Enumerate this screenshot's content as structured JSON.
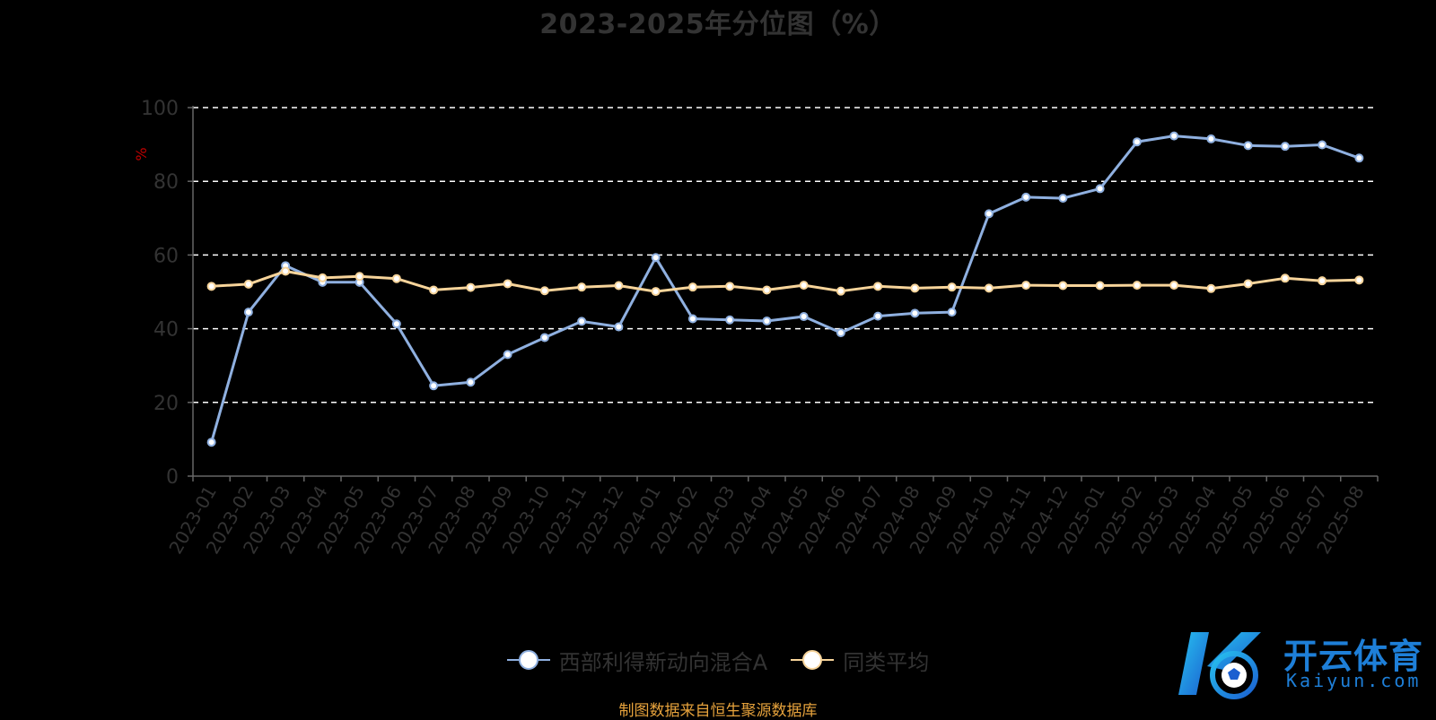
{
  "title": "2023-2025年分位图（%）",
  "source_note": "制图数据来自恒生聚源数据库",
  "brand": {
    "cn": "开云体育",
    "en": "Kaiyun.com"
  },
  "colors": {
    "fund": "#8fb0e0",
    "avg": "#f7d49a",
    "axis": "#666666",
    "axis_label": "#333333",
    "grid": "#ffffff",
    "unit": "#c00000",
    "brand": "#1e7fd8"
  },
  "legend": [
    {
      "name": "西部利得新动向混合A",
      "color": "#8fb0e0"
    },
    {
      "name": "同类平均",
      "color": "#f7d49a"
    }
  ],
  "chart_data": {
    "type": "line",
    "title": "2023-2025年分位图（%）",
    "ylabel": "%",
    "xlabel": "",
    "ylim": [
      0,
      100
    ],
    "yticks": [
      0,
      20,
      40,
      60,
      80,
      100
    ],
    "grid": "horizontal dashed",
    "legend_position": "bottom",
    "categories": [
      "2023-01",
      "2023-02",
      "2023-03",
      "2023-04",
      "2023-05",
      "2023-06",
      "2023-07",
      "2023-08",
      "2023-09",
      "2023-10",
      "2023-11",
      "2023-12",
      "2024-01",
      "2024-02",
      "2024-03",
      "2024-04",
      "2024-05",
      "2024-06",
      "2024-07",
      "2024-08",
      "2024-09",
      "2024-10",
      "2024-11",
      "2024-12",
      "2025-01",
      "2025-02",
      "2025-03",
      "2025-04",
      "2025-05",
      "2025-06",
      "2025-07",
      "2025-08"
    ],
    "series": [
      {
        "name": "西部利得新动向混合A",
        "values": [
          9.2,
          44.5,
          57.1,
          52.6,
          52.6,
          41.3,
          24.5,
          25.5,
          33.0,
          37.6,
          42.0,
          40.5,
          59.3,
          42.7,
          42.4,
          42.1,
          43.3,
          38.9,
          43.4,
          44.2,
          44.5,
          71.2,
          75.7,
          75.4,
          78.0,
          90.7,
          92.3,
          91.5,
          89.7,
          89.5,
          89.9,
          86.3
        ]
      },
      {
        "name": "同类平均",
        "values": [
          51.5,
          52.1,
          55.6,
          53.8,
          54.2,
          53.6,
          50.5,
          51.2,
          52.2,
          50.3,
          51.3,
          51.7,
          50.1,
          51.3,
          51.5,
          50.5,
          51.8,
          50.2,
          51.5,
          51.0,
          51.3,
          51.0,
          51.8,
          51.7,
          51.7,
          51.8,
          51.8,
          50.9,
          52.2,
          53.7,
          53.0,
          53.2
        ]
      }
    ]
  }
}
